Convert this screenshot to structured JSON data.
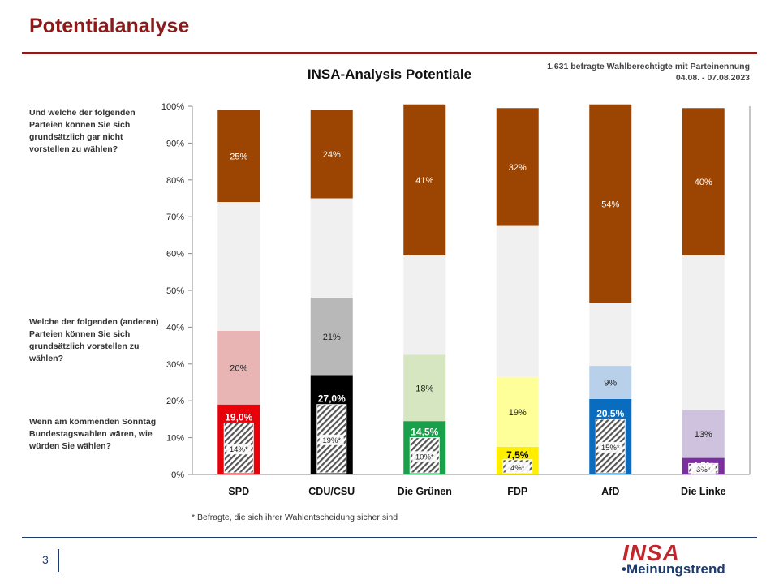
{
  "header": {
    "title": "Potentialanalyse"
  },
  "questions": {
    "q1": "Und welche der folgenden Parteien können Sie sich grundsätzlich gar nicht vorstellen zu wählen?",
    "q2": "Welche der folgenden (anderen) Parteien können Sie sich grundsätzlich vorstellen zu wählen?",
    "q3": "Wenn am kommenden Sonntag Bundestagswahlen wären, wie würden Sie wählen?"
  },
  "source": {
    "line1": "1.631 befragte Wahlberechtigte mit Parteinennung",
    "line2": "04.08. - 07.08.2023"
  },
  "footnote": "* Befragte, die sich ihrer Wahlentscheidung sicher sind",
  "footer": {
    "page": "3",
    "logo_top": "INSA",
    "logo_bottom": "•Meinungstrend"
  },
  "chart_data": {
    "type": "bar",
    "stacked": true,
    "title": "INSA-Analysis Potentiale",
    "ylim": [
      0,
      100
    ],
    "yticks": [
      "0%",
      "10%",
      "20%",
      "30%",
      "40%",
      "50%",
      "60%",
      "70%",
      "80%",
      "90%",
      "100%"
    ],
    "categories": [
      "SPD",
      "CDU/CSU",
      "Die Grünen",
      "FDP",
      "AfD",
      "Die Linke"
    ],
    "series": [
      {
        "values": [
          19.0,
          27.0,
          14.5,
          7.5,
          20.5,
          4.5
        ],
        "labels": [
          "19,0%",
          "27,0%",
          "14,5%",
          "7,5%",
          "20,5%",
          "4,5%"
        ]
      },
      {
        "values": [
          20,
          21,
          18,
          19,
          9,
          13
        ],
        "labels": [
          "20%",
          "21%",
          "18%",
          "19%",
          "9%",
          "13%"
        ]
      },
      {
        "values": [
          35,
          27,
          27,
          41,
          17,
          42
        ]
      },
      {
        "values": [
          25,
          24,
          41,
          32,
          54,
          40
        ],
        "labels": [
          "25%",
          "24%",
          "41%",
          "32%",
          "54%",
          "40%"
        ]
      }
    ],
    "sure_voters": {
      "values": [
        14,
        19,
        10,
        4,
        15,
        3
      ],
      "labels": [
        "14%*",
        "19%*",
        "10%*",
        "4%*",
        "15%*",
        "3%*"
      ]
    },
    "colors": {
      "vote": [
        "#e8000b",
        "#000000",
        "#1aa04a",
        "#ffee00",
        "#0a6cbf",
        "#7b2f9e"
      ],
      "vote_label": [
        "#ffffff",
        "#ffffff",
        "#ffffff",
        "#000000",
        "#ffffff",
        "#ffffff"
      ],
      "potential": [
        "#e8b4b4",
        "#b8b8b8",
        "#d6e6c0",
        "#ffff99",
        "#b8d0ea",
        "#cfc2df"
      ],
      "neutral": "#f0f0f0",
      "rejection": "#9c4503"
    },
    "grid": false
  }
}
